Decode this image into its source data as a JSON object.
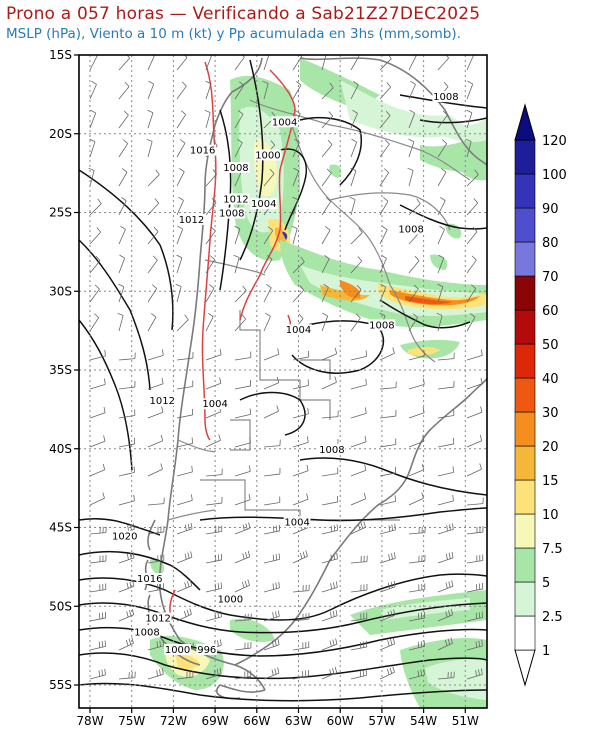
{
  "title": "Prono a 057 horas — Verificando a Sab21Z27DEC2025",
  "subtitle": "MSLP (hPa), Viento a 10 m (kt) y Pp acumulada en 3hs (mm,somb).",
  "map": {
    "lon_labels": [
      "78W",
      "75W",
      "72W",
      "69W",
      "66W",
      "63W",
      "60W",
      "57W",
      "54W",
      "51W"
    ],
    "lat_labels": [
      "15S",
      "20S",
      "25S",
      "30S",
      "35S",
      "40S",
      "45S",
      "50S",
      "55S"
    ],
    "isobar_labels": [
      {
        "text": "1004",
        "lon": -64.0,
        "lat": -19.4
      },
      {
        "text": "1000",
        "lon": -65.2,
        "lat": -21.5
      },
      {
        "text": "1008",
        "lon": -67.5,
        "lat": -22.3
      },
      {
        "text": "1016",
        "lon": -69.9,
        "lat": -21.2
      },
      {
        "text": "1012",
        "lon": -67.5,
        "lat": -24.3
      },
      {
        "text": "1004",
        "lon": -65.5,
        "lat": -24.6
      },
      {
        "text": "1008",
        "lon": -67.8,
        "lat": -25.2
      },
      {
        "text": "1012",
        "lon": -70.7,
        "lat": -25.6
      },
      {
        "text": "1008",
        "lon": -52.4,
        "lat": -17.8
      },
      {
        "text": "1008",
        "lon": -54.9,
        "lat": -26.2
      },
      {
        "text": "1004",
        "lon": -63.0,
        "lat": -32.6
      },
      {
        "text": "1008",
        "lon": -57.0,
        "lat": -32.3
      },
      {
        "text": "1012",
        "lon": -72.8,
        "lat": -37.1
      },
      {
        "text": "1004",
        "lon": -69.0,
        "lat": -37.3
      },
      {
        "text": "1008",
        "lon": -60.6,
        "lat": -40.2
      },
      {
        "text": "1004",
        "lon": -63.1,
        "lat": -44.8
      },
      {
        "text": "1020",
        "lon": -75.5,
        "lat": -45.7
      },
      {
        "text": "1016",
        "lon": -73.7,
        "lat": -48.4
      },
      {
        "text": "1000",
        "lon": -67.9,
        "lat": -49.7
      },
      {
        "text": "1012",
        "lon": -73.1,
        "lat": -50.9
      },
      {
        "text": "1008",
        "lon": -73.9,
        "lat": -51.8
      },
      {
        "text": "1000",
        "lon": -71.7,
        "lat": -52.9
      },
      {
        "text": "996",
        "lon": -69.6,
        "lat": -52.9
      }
    ]
  },
  "colorbar": {
    "labels": [
      "1",
      "2.5",
      "5",
      "7.5",
      "10",
      "15",
      "20",
      "30",
      "40",
      "50",
      "60",
      "70",
      "80",
      "90",
      "100",
      "120"
    ],
    "colors": [
      "#ffffff",
      "#d6f5d6",
      "#a8e6a8",
      "#f7f7b8",
      "#fde27a",
      "#f5b73a",
      "#f58e1e",
      "#ee5810",
      "#dc2808",
      "#b30b0b",
      "#8a0606",
      "#7878dc",
      "#4e4ecf",
      "#3434b8",
      "#1e1e9b"
    ],
    "top_arrow_color": "#0c0c80"
  }
}
